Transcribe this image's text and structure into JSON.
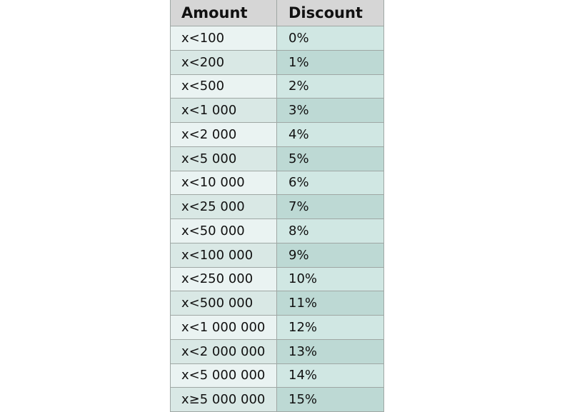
{
  "table": {
    "headers": {
      "amount": "Amount",
      "discount": "Discount"
    },
    "rows": [
      {
        "amount": "x<100",
        "discount": "0%"
      },
      {
        "amount": "x<200",
        "discount": "1%"
      },
      {
        "amount": "x<500",
        "discount": "2%"
      },
      {
        "amount": "x<1 000",
        "discount": "3%"
      },
      {
        "amount": "x<2 000",
        "discount": "4%"
      },
      {
        "amount": "x<5 000",
        "discount": "5%"
      },
      {
        "amount": "x<10 000",
        "discount": "6%"
      },
      {
        "amount": "x<25 000",
        "discount": "7%"
      },
      {
        "amount": "x<50 000",
        "discount": "8%"
      },
      {
        "amount": "x<100 000",
        "discount": "9%"
      },
      {
        "amount": "x<250 000",
        "discount": "10%"
      },
      {
        "amount": "x<500 000",
        "discount": "11%"
      },
      {
        "amount": "x<1 000 000",
        "discount": "12%"
      },
      {
        "amount": "x<2 000 000",
        "discount": "13%"
      },
      {
        "amount": "x<5 000 000",
        "discount": "14%"
      },
      {
        "amount": "x≥5 000 000",
        "discount": "15%"
      }
    ]
  },
  "colors": {
    "header_bg": "#d6d6d6",
    "odd_amount_bg": "#eaf3f2",
    "odd_discount_bg": "#d0e7e3",
    "even_amount_bg": "#d9e8e5",
    "even_discount_bg": "#bdd9d4",
    "border": "#9fa7a4"
  }
}
